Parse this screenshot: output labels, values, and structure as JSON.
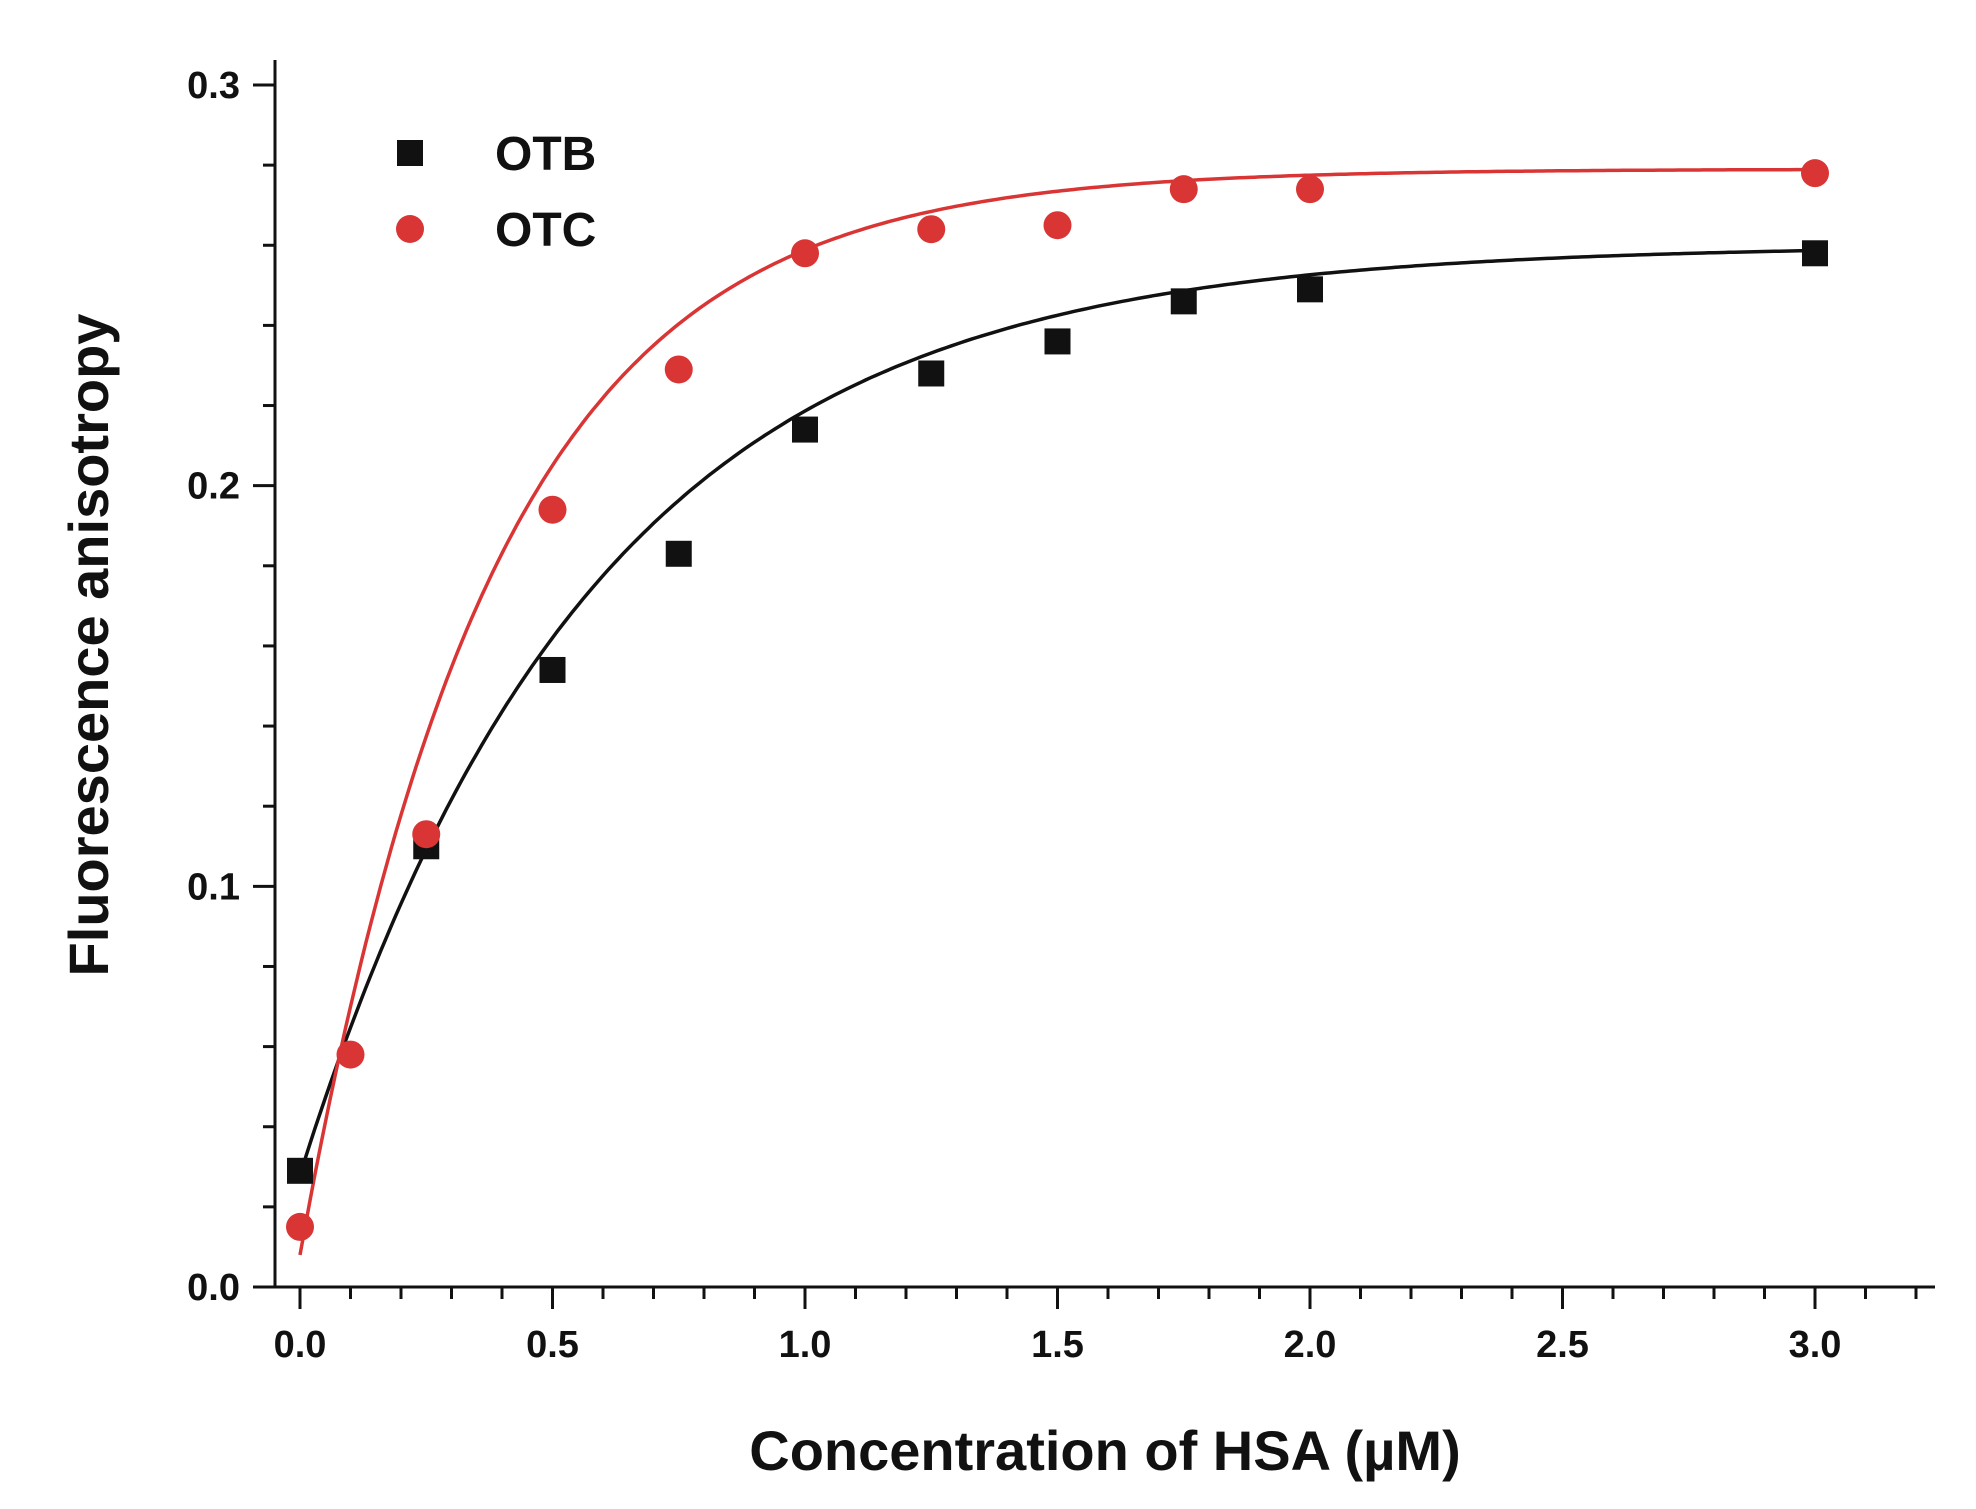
{
  "chart_data": {
    "type": "scatter",
    "title": "",
    "xlabel": "Concentration of HSA (µM)",
    "ylabel": "Fluorescence anisotropy",
    "xlim": [
      -0.05,
      3.25
    ],
    "ylim": [
      0.0,
      0.3
    ],
    "x_major_ticks": [
      0.0,
      0.5,
      1.0,
      1.5,
      2.0,
      2.5,
      3.0
    ],
    "x_tick_labels": [
      "0.0",
      "0.5",
      "1.0",
      "1.5",
      "2.0",
      "2.5",
      "3.0"
    ],
    "x_minor_ticks": [
      0.1,
      0.2,
      0.3,
      0.4,
      0.6,
      0.7,
      0.8,
      0.9,
      1.1,
      1.2,
      1.3,
      1.4,
      1.6,
      1.7,
      1.8,
      1.9,
      2.1,
      2.2,
      2.3,
      2.4,
      2.6,
      2.7,
      2.8,
      2.9,
      3.1,
      3.2
    ],
    "y_major_ticks": [
      0.0,
      0.1,
      0.2,
      0.3
    ],
    "y_tick_labels": [
      "0.0",
      "0.1",
      "0.2",
      "0.3"
    ],
    "y_minor_ticks": [
      0.02,
      0.04,
      0.06,
      0.08,
      0.12,
      0.14,
      0.16,
      0.18,
      0.22,
      0.24,
      0.26,
      0.28
    ],
    "grid": false,
    "legend_position": "top-left",
    "series": [
      {
        "name": "OTB",
        "marker": "square",
        "color": "#111111",
        "x": [
          0.0,
          0.25,
          0.5,
          0.75,
          1.0,
          1.25,
          1.5,
          1.75,
          2.0,
          3.0
        ],
        "y": [
          0.029,
          0.11,
          0.154,
          0.183,
          0.214,
          0.228,
          0.236,
          0.246,
          0.249,
          0.258
        ],
        "fit": {
          "model": "y0 + A*(1-exp(-x/t))",
          "y0": 0.028,
          "A": 0.232,
          "t": 0.58
        }
      },
      {
        "name": "OTC",
        "marker": "circle",
        "color": "#d93535",
        "x": [
          0.0,
          0.1,
          0.25,
          0.5,
          0.75,
          1.0,
          1.25,
          1.5,
          1.75,
          2.0,
          3.0
        ],
        "y": [
          0.015,
          0.058,
          0.113,
          0.194,
          0.229,
          0.258,
          0.264,
          0.265,
          0.274,
          0.274,
          0.278
        ],
        "fit": {
          "model": "y0 + A*(1-exp(-x/t))",
          "y0": 0.008,
          "A": 0.271,
          "t": 0.385
        }
      }
    ]
  }
}
